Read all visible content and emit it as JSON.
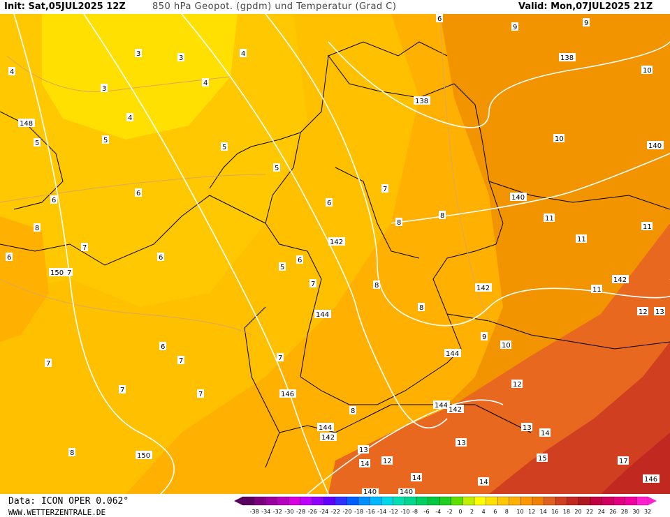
{
  "header": {
    "init": "Init: Sat,05JUL2025 12Z",
    "title": "850 hPa Geopot. (gpdm) und Temperatur (Grad C)",
    "valid": "Valid: Mon,07JUL2025 21Z"
  },
  "footer": {
    "data_source": "Data: ICON OPER 0.062°",
    "website": "WWW.WETTERZENTRALE.DE"
  },
  "legend": {
    "ticks": [
      "-38",
      "-34",
      "-32",
      "-30",
      "-28",
      "-26",
      "-24",
      "-22",
      "-20",
      "-18",
      "-16",
      "-14",
      "-12",
      "-10",
      "-8",
      "-6",
      "-4",
      "-2",
      "0",
      "2",
      "4",
      "6",
      "8",
      "10",
      "12",
      "14",
      "16",
      "18",
      "20",
      "22",
      "24",
      "26",
      "28",
      "30",
      "32"
    ],
    "colors": [
      "#5a0060",
      "#7a0080",
      "#9a00a0",
      "#b800c0",
      "#d800e0",
      "#c000ff",
      "#9000ff",
      "#6000ff",
      "#3030ff",
      "#0060ff",
      "#0090ff",
      "#00b8ff",
      "#00d8e8",
      "#00e0b0",
      "#00d890",
      "#00d060",
      "#00c840",
      "#20d020",
      "#60e000",
      "#c0f000",
      "#ffff00",
      "#ffe000",
      "#ffc800",
      "#ffb000",
      "#ff9800",
      "#f08000",
      "#e06020",
      "#d04020",
      "#c02820",
      "#b01820",
      "#c00040",
      "#d00060",
      "#e00080",
      "#f000a0",
      "#ff20d0"
    ]
  },
  "map_labels": {
    "temperature": [
      "3",
      "3",
      "4",
      "4",
      "3",
      "5",
      "4",
      "4",
      "5",
      "5",
      "5",
      "6",
      "6",
      "6",
      "6",
      "7",
      "7",
      "7",
      "6",
      "8",
      "8",
      "8",
      "8",
      "5",
      "6",
      "7",
      "6",
      "7",
      "7",
      "8",
      "9",
      "9",
      "9",
      "10",
      "10",
      "10",
      "11",
      "11",
      "11",
      "11",
      "12",
      "12",
      "13",
      "13",
      "13",
      "14",
      "14",
      "12",
      "14",
      "15",
      "17",
      "13",
      "14",
      "8",
      "8",
      "7",
      "7",
      "7",
      "6"
    ],
    "geopotential": [
      "148",
      "150",
      "142",
      "138",
      "138",
      "140",
      "140",
      "142",
      "142",
      "144",
      "144",
      "146",
      "144",
      "142",
      "150",
      "144",
      "142",
      "140",
      "140",
      "146"
    ]
  },
  "colors": {
    "yellow": "#ffe000",
    "light_orange": "#ffc800",
    "orange": "#ffb000",
    "dark_orange": "#f09000",
    "red_orange": "#e06020",
    "red": "#c83020"
  }
}
